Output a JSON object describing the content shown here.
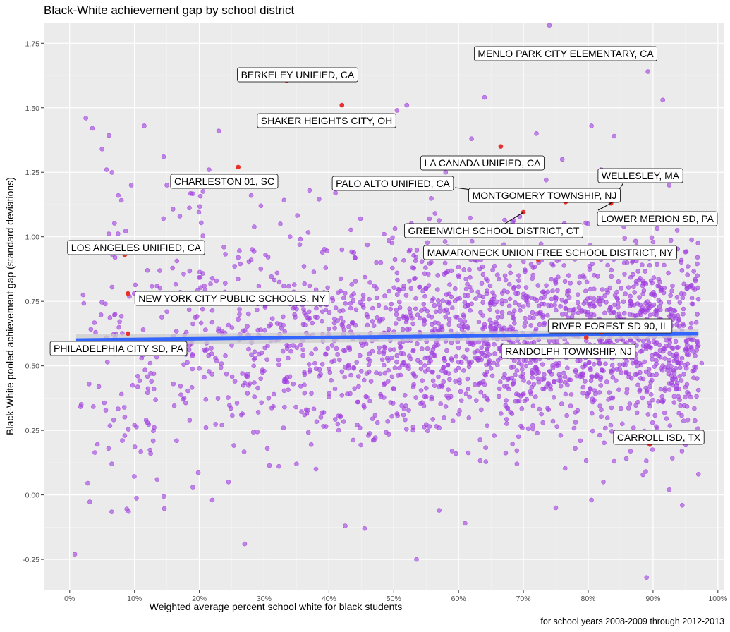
{
  "header": {
    "title": "Black-White achievement gap by school district"
  },
  "footer": {
    "caption": "for school years 2008-2009 through 2012-2013"
  },
  "chart_data": {
    "type": "scatter",
    "title": "Black-White achievement gap by school district",
    "xlabel": "Weighted average percent school white for black students",
    "ylabel": "Black-White pooled achievement gap (standard deviations)",
    "caption": "for school years 2008-2009 through 2012-2013",
    "xlim": [
      -0.04,
      1.01
    ],
    "ylim": [
      -0.37,
      1.83
    ],
    "x_ticks": [
      0,
      0.1,
      0.2,
      0.3,
      0.4,
      0.5,
      0.6,
      0.7,
      0.8,
      0.9,
      1.0
    ],
    "x_tick_labels": [
      "0%",
      "10%",
      "20%",
      "30%",
      "40%",
      "50%",
      "60%",
      "70%",
      "80%",
      "90%",
      "100%"
    ],
    "y_ticks": [
      -0.25,
      0,
      0.25,
      0.5,
      0.75,
      1.0,
      1.25,
      1.5,
      1.75
    ],
    "y_tick_labels": [
      "-0.25",
      "0.00",
      "0.25",
      "0.50",
      "0.75",
      "1.00",
      "1.25",
      "1.50",
      "1.75"
    ],
    "grid": true,
    "background": "#ebebeb",
    "colors": {
      "points": "#a040e0",
      "highlight": "#e8312a",
      "trend": "#3366ff",
      "band": "#cccccc"
    },
    "trend_line": {
      "x": [
        0.01,
        0.97
      ],
      "y": [
        0.6,
        0.625
      ]
    },
    "highlighted": [
      {
        "label": "MENLO PARK CITY ELEMENTARY, CA",
        "x": 0.75,
        "y": 1.69
      },
      {
        "label": "BERKELEY UNIFIED, CA",
        "x": 0.335,
        "y": 1.605
      },
      {
        "label": "SHAKER HEIGHTS CITY, OH",
        "x": 0.42,
        "y": 1.51
      },
      {
        "label": "LA CANADA UNIFIED, CA",
        "x": 0.665,
        "y": 1.35
      },
      {
        "label": "CHARLESTON 01, SC",
        "x": 0.26,
        "y": 1.27
      },
      {
        "label": "WELLESLEY, MA",
        "x": 0.835,
        "y": 1.13
      },
      {
        "label": "PALO ALTO UNIFIED, CA",
        "x": 0.765,
        "y": 1.135
      },
      {
        "label": "MONTGOMERY TOWNSHIP, NJ",
        "x": 0.765,
        "y": 1.135
      },
      {
        "label": "LOWER MERION SD, PA",
        "x": 0.835,
        "y": 1.13
      },
      {
        "label": "GREENWICH SCHOOL DISTRICT, CT",
        "x": 0.7,
        "y": 1.095
      },
      {
        "label": "LOS ANGELES UNIFIED, CA",
        "x": 0.085,
        "y": 0.93
      },
      {
        "label": "MAMARONECK UNION FREE SCHOOL DISTRICT, NY",
        "x": 0.723,
        "y": 0.91
      },
      {
        "label": "NEW YORK CITY PUBLIC SCHOOLS, NY",
        "x": 0.09,
        "y": 0.78
      },
      {
        "label": "RIVER FOREST SD 90, IL",
        "x": 0.82,
        "y": 0.63
      },
      {
        "label": "PHILADELPHIA CITY SD, PA",
        "x": 0.09,
        "y": 0.625
      },
      {
        "label": "RANDOLPH TOWNSHIP, NJ",
        "x": 0.797,
        "y": 0.61
      },
      {
        "label": "CARROLL ISD, TX",
        "x": 0.895,
        "y": 0.195
      }
    ],
    "points": [
      [
        0.018,
        0.95
      ],
      [
        0.025,
        1.46
      ],
      [
        0.028,
        0.045
      ],
      [
        0.03,
        0.43
      ],
      [
        0.035,
        1.42
      ],
      [
        0.04,
        0.63
      ],
      [
        0.045,
        0.42
      ],
      [
        0.05,
        1.34
      ],
      [
        0.055,
        0.74
      ],
      [
        0.057,
        1.26
      ],
      [
        0.06,
        0.18
      ],
      [
        0.065,
        0.12
      ],
      [
        0.07,
        0.61
      ],
      [
        0.075,
        1.16
      ],
      [
        0.08,
        0.39
      ],
      [
        0.085,
        0.23
      ],
      [
        0.095,
        1.2
      ],
      [
        0.1,
        0.27
      ],
      [
        0.105,
        0.46
      ],
      [
        0.11,
        0.56
      ],
      [
        0.115,
        1.43
      ],
      [
        0.12,
        0.28
      ],
      [
        0.125,
        0.16
      ],
      [
        0.13,
        0.41
      ],
      [
        0.135,
        0.06
      ],
      [
        0.14,
        0.56
      ],
      [
        0.145,
        1.31
      ],
      [
        0.15,
        0.71
      ],
      [
        0.16,
        0.43
      ],
      [
        0.165,
        0.21
      ],
      [
        0.17,
        1.08
      ],
      [
        0.175,
        0.37
      ],
      [
        0.18,
        0.63
      ],
      [
        0.185,
        0.29
      ],
      [
        0.19,
        0.03
      ],
      [
        0.2,
        0.49
      ],
      [
        0.205,
        0.72
      ],
      [
        0.21,
        0.37
      ],
      [
        0.215,
        1.26
      ],
      [
        0.22,
        -0.02
      ],
      [
        0.225,
        0.53
      ],
      [
        0.23,
        1.41
      ],
      [
        0.235,
        0.27
      ],
      [
        0.24,
        0.82
      ],
      [
        0.245,
        0.05
      ],
      [
        0.25,
        0.58
      ],
      [
        0.255,
        0.44
      ],
      [
        0.26,
        0.68
      ],
      [
        0.265,
        0.31
      ],
      [
        0.27,
        -0.19
      ],
      [
        0.275,
        0.62
      ],
      [
        0.28,
        0.91
      ],
      [
        0.285,
        0.38
      ],
      [
        0.29,
        0.74
      ],
      [
        0.295,
        1.12
      ],
      [
        0.3,
        0.48
      ],
      [
        0.305,
        0.18
      ],
      [
        0.31,
        0.66
      ],
      [
        0.315,
        0.39
      ],
      [
        0.32,
        0.86
      ],
      [
        0.325,
        1.05
      ],
      [
        0.33,
        0.26
      ],
      [
        0.335,
        0.58
      ],
      [
        0.34,
        0.74
      ],
      [
        0.345,
        0.43
      ],
      [
        0.35,
        0.12
      ],
      [
        0.355,
        0.97
      ],
      [
        0.36,
        0.54
      ],
      [
        0.365,
        0.33
      ],
      [
        0.37,
        0.81
      ],
      [
        0.375,
        0.62
      ],
      [
        0.38,
        0.1
      ],
      [
        0.385,
        0.46
      ],
      [
        0.39,
        0.71
      ],
      [
        0.395,
        0.88
      ],
      [
        0.4,
        0.38
      ],
      [
        0.405,
        0.58
      ],
      [
        0.41,
        1.17
      ],
      [
        0.415,
        0.25
      ],
      [
        0.42,
        0.66
      ],
      [
        0.425,
        -0.12
      ],
      [
        0.43,
        0.49
      ],
      [
        0.435,
        0.77
      ],
      [
        0.44,
        0.92
      ],
      [
        0.445,
        0.36
      ],
      [
        0.45,
        0.59
      ],
      [
        0.455,
        -0.13
      ],
      [
        0.46,
        0.69
      ],
      [
        0.465,
        0.44
      ],
      [
        0.47,
        0.81
      ],
      [
        0.475,
        0.28
      ],
      [
        0.48,
        0.62
      ],
      [
        0.485,
        1.01
      ],
      [
        0.49,
        0.53
      ],
      [
        0.495,
        0.72
      ],
      [
        0.5,
        0.41
      ],
      [
        0.505,
        0.86
      ],
      [
        0.51,
        0.57
      ],
      [
        0.515,
        0.31
      ],
      [
        0.52,
        0.68
      ],
      [
        0.525,
        0.95
      ],
      [
        0.53,
        0.47
      ],
      [
        0.535,
        -0.25
      ],
      [
        0.54,
        0.63
      ],
      [
        0.545,
        0.79
      ],
      [
        0.55,
        0.38
      ],
      [
        0.555,
        1.07
      ],
      [
        0.56,
        0.55
      ],
      [
        0.565,
        0.71
      ],
      [
        0.57,
        0.26
      ],
      [
        0.575,
        0.64
      ],
      [
        0.58,
        0.86
      ],
      [
        0.585,
        0.47
      ],
      [
        0.59,
        0.17
      ],
      [
        0.595,
        0.69
      ],
      [
        0.6,
        0.57
      ],
      [
        0.605,
        0.92
      ],
      [
        0.61,
        -0.11
      ],
      [
        0.615,
        0.41
      ],
      [
        0.62,
        0.74
      ],
      [
        0.625,
        0.59
      ],
      [
        0.63,
        1.15
      ],
      [
        0.635,
        0.33
      ],
      [
        0.64,
        0.66
      ],
      [
        0.645,
        0.83
      ],
      [
        0.65,
        0.49
      ],
      [
        0.655,
        0.23
      ],
      [
        0.66,
        0.71
      ],
      [
        0.665,
        0.56
      ],
      [
        0.67,
        0.97
      ],
      [
        0.675,
        0.42
      ],
      [
        0.68,
        0.65
      ],
      [
        0.685,
        0.8
      ],
      [
        0.69,
        0.12
      ],
      [
        0.695,
        0.54
      ],
      [
        0.7,
        0.73
      ],
      [
        0.705,
        0.37
      ],
      [
        0.71,
        0.61
      ],
      [
        0.715,
        0.88
      ],
      [
        0.72,
        0.47
      ],
      [
        0.725,
        0.66
      ],
      [
        0.73,
        0.28
      ],
      [
        0.735,
        1.22
      ],
      [
        0.74,
        0.58
      ],
      [
        0.745,
        0.79
      ],
      [
        0.75,
        -0.05
      ],
      [
        0.755,
        0.51
      ],
      [
        0.76,
        0.7
      ],
      [
        0.765,
        0.39
      ],
      [
        0.77,
        0.85
      ],
      [
        0.775,
        0.62
      ],
      [
        0.78,
        0.18
      ],
      [
        0.785,
        0.55
      ],
      [
        0.79,
        0.94
      ],
      [
        0.795,
        0.44
      ],
      [
        0.8,
        0.67
      ],
      [
        0.805,
        -0.02
      ],
      [
        0.81,
        0.58
      ],
      [
        0.815,
        0.75
      ],
      [
        0.82,
        0.33
      ],
      [
        0.825,
        0.62
      ],
      [
        0.83,
        0.89
      ],
      [
        0.835,
        0.48
      ],
      [
        0.84,
        0.13
      ],
      [
        0.845,
        0.69
      ],
      [
        0.85,
        0.55
      ],
      [
        0.855,
        1.04
      ],
      [
        0.86,
        0.41
      ],
      [
        0.865,
        0.77
      ],
      [
        0.87,
        0.26
      ],
      [
        0.875,
        0.61
      ],
      [
        0.88,
        0.84
      ],
      [
        0.885,
        0.45
      ],
      [
        0.89,
        -0.32
      ],
      [
        0.895,
        0.63
      ],
      [
        0.9,
        0.98
      ],
      [
        0.905,
        0.52
      ],
      [
        0.91,
        0.73
      ],
      [
        0.915,
        0.36
      ],
      [
        0.92,
        0.6
      ],
      [
        0.925,
        0.02
      ],
      [
        0.93,
        0.81
      ],
      [
        0.935,
        0.49
      ],
      [
        0.94,
        0.68
      ],
      [
        0.945,
        -0.04
      ],
      [
        0.95,
        0.56
      ],
      [
        0.955,
        0.39
      ],
      [
        0.96,
        0.74
      ],
      [
        0.965,
        0.62
      ],
      [
        0.97,
        0.08
      ],
      [
        0.975,
        0.51
      ],
      [
        0.008,
        -0.23
      ],
      [
        0.74,
        1.82
      ],
      [
        0.892,
        1.64
      ],
      [
        0.915,
        1.53
      ],
      [
        0.64,
        1.54
      ],
      [
        0.52,
        1.51
      ],
      [
        0.505,
        1.49
      ],
      [
        0.62,
        1.38
      ],
      [
        0.72,
        1.4
      ],
      [
        0.805,
        1.43
      ],
      [
        0.84,
        1.39
      ],
      [
        0.82,
        1.26
      ],
      [
        0.76,
        1.3
      ],
      [
        0.69,
        1.28
      ],
      [
        0.58,
        1.25
      ],
      [
        0.44,
        1.22
      ],
      [
        0.37,
        1.18
      ],
      [
        0.28,
        1.16
      ],
      [
        0.15,
        1.2
      ],
      [
        0.33,
        1.62
      ],
      [
        0.925,
        1.2
      ],
      [
        0.57,
        -0.06
      ],
      [
        0.57,
        0.92
      ],
      [
        0.66,
        0.96
      ],
      [
        0.6,
        0.85
      ],
      [
        0.55,
        0.8
      ],
      [
        0.68,
        0.86
      ],
      [
        0.75,
        0.82
      ],
      [
        0.86,
        0.9
      ],
      [
        0.93,
        0.95
      ],
      [
        0.48,
        0.9
      ],
      [
        0.42,
        0.95
      ],
      [
        0.39,
        0.94
      ],
      [
        0.35,
        0.72
      ],
      [
        0.26,
        0.92
      ],
      [
        0.22,
        0.84
      ],
      [
        0.12,
        0.87
      ],
      [
        0.07,
        0.92
      ],
      [
        0.06,
        0.58
      ],
      [
        0.07,
        0.7
      ]
    ],
    "dense_cloud": {
      "x_range": [
        0.15,
        0.97
      ],
      "y_range": [
        0.2,
        1.0
      ],
      "center_y": 0.6,
      "count": 1900
    }
  }
}
